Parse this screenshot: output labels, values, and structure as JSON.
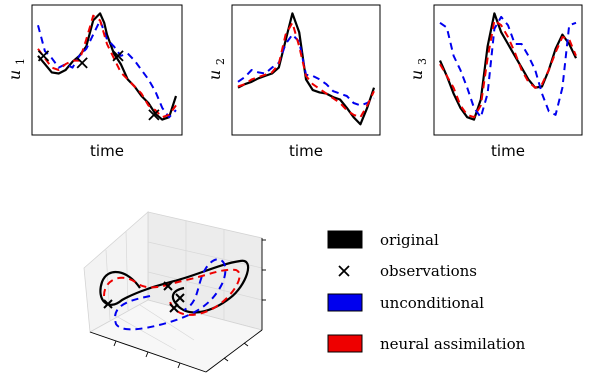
{
  "chart_data": [
    {
      "type": "line",
      "panel": "u1",
      "ylabel": "u",
      "ylabel_sub": "1",
      "xlabel": "time",
      "xlim": [
        0,
        1
      ],
      "ylim": [
        0,
        1
      ],
      "grid": false,
      "series": [
        {
          "name": "original",
          "color": "#000000",
          "dash": "solid",
          "x": [
            0.0,
            0.05,
            0.1,
            0.15,
            0.2,
            0.25,
            0.3,
            0.35,
            0.4,
            0.45,
            0.48,
            0.5,
            0.55,
            0.6,
            0.65,
            0.7,
            0.75,
            0.8,
            0.85,
            0.9,
            0.95,
            1.0
          ],
          "y": [
            0.62,
            0.55,
            0.48,
            0.47,
            0.5,
            0.57,
            0.62,
            0.7,
            0.92,
            0.98,
            0.9,
            0.8,
            0.64,
            0.55,
            0.42,
            0.36,
            0.28,
            0.22,
            0.13,
            0.08,
            0.1,
            0.28
          ]
        },
        {
          "name": "unconditional",
          "color": "#0000ee",
          "dash": "dashed",
          "x": [
            0.0,
            0.05,
            0.1,
            0.15,
            0.2,
            0.25,
            0.3,
            0.35,
            0.4,
            0.45,
            0.5,
            0.55,
            0.6,
            0.65,
            0.7,
            0.75,
            0.8,
            0.85,
            0.9,
            0.95,
            1.0
          ],
          "y": [
            0.88,
            0.66,
            0.6,
            0.52,
            0.55,
            0.52,
            0.62,
            0.68,
            0.8,
            0.92,
            0.76,
            0.7,
            0.62,
            0.64,
            0.58,
            0.5,
            0.42,
            0.32,
            0.18,
            0.1,
            0.16
          ]
        },
        {
          "name": "neural assimilation",
          "color": "#ee0000",
          "dash": "dashed",
          "x": [
            0.0,
            0.05,
            0.1,
            0.15,
            0.2,
            0.25,
            0.3,
            0.35,
            0.4,
            0.45,
            0.5,
            0.55,
            0.6,
            0.65,
            0.7,
            0.75,
            0.8,
            0.85,
            0.9,
            0.95,
            1.0
          ],
          "y": [
            0.68,
            0.6,
            0.52,
            0.5,
            0.55,
            0.58,
            0.58,
            0.76,
            0.96,
            0.92,
            0.72,
            0.6,
            0.48,
            0.42,
            0.36,
            0.3,
            0.2,
            0.16,
            0.1,
            0.12,
            0.2
          ]
        }
      ],
      "observations": {
        "x": [
          0.04,
          0.32,
          0.58,
          0.84
        ],
        "y": [
          0.62,
          0.56,
          0.62,
          0.12
        ]
      }
    },
    {
      "type": "line",
      "panel": "u2",
      "ylabel": "u",
      "ylabel_sub": "2",
      "xlabel": "time",
      "xlim": [
        0,
        1
      ],
      "ylim": [
        0,
        1
      ],
      "grid": false,
      "series": [
        {
          "name": "original",
          "color": "#000000",
          "dash": "solid",
          "x": [
            0.0,
            0.05,
            0.1,
            0.15,
            0.2,
            0.25,
            0.3,
            0.35,
            0.4,
            0.45,
            0.5,
            0.55,
            0.6,
            0.65,
            0.7,
            0.75,
            0.8,
            0.85,
            0.9,
            0.95,
            1.0
          ],
          "y": [
            0.35,
            0.38,
            0.4,
            0.43,
            0.45,
            0.47,
            0.52,
            0.75,
            0.98,
            0.82,
            0.42,
            0.33,
            0.31,
            0.3,
            0.27,
            0.25,
            0.18,
            0.1,
            0.04,
            0.18,
            0.35
          ]
        },
        {
          "name": "unconditional",
          "color": "#0000ee",
          "dash": "dashed",
          "x": [
            0.0,
            0.05,
            0.1,
            0.15,
            0.2,
            0.25,
            0.3,
            0.35,
            0.4,
            0.45,
            0.5,
            0.55,
            0.6,
            0.65,
            0.7,
            0.75,
            0.8,
            0.85,
            0.9,
            0.95,
            1.0
          ],
          "y": [
            0.4,
            0.44,
            0.5,
            0.48,
            0.47,
            0.52,
            0.56,
            0.72,
            0.8,
            0.74,
            0.46,
            0.45,
            0.42,
            0.38,
            0.32,
            0.3,
            0.28,
            0.22,
            0.2,
            0.22,
            0.26
          ]
        },
        {
          "name": "neural assimilation",
          "color": "#ee0000",
          "dash": "dashed",
          "x": [
            0.0,
            0.05,
            0.1,
            0.15,
            0.2,
            0.25,
            0.3,
            0.35,
            0.4,
            0.45,
            0.5,
            0.55,
            0.6,
            0.65,
            0.7,
            0.75,
            0.8,
            0.85,
            0.9,
            0.95,
            1.0
          ],
          "y": [
            0.36,
            0.38,
            0.42,
            0.44,
            0.46,
            0.48,
            0.55,
            0.8,
            0.9,
            0.7,
            0.45,
            0.38,
            0.34,
            0.3,
            0.26,
            0.22,
            0.16,
            0.12,
            0.1,
            0.2,
            0.32
          ]
        }
      ]
    },
    {
      "type": "line",
      "panel": "u3",
      "ylabel": "u",
      "ylabel_sub": "3",
      "xlabel": "time",
      "xlim": [
        0,
        1
      ],
      "ylim": [
        0,
        1
      ],
      "grid": false,
      "series": [
        {
          "name": "original",
          "color": "#000000",
          "dash": "solid",
          "x": [
            0.0,
            0.05,
            0.1,
            0.15,
            0.2,
            0.25,
            0.3,
            0.35,
            0.4,
            0.45,
            0.5,
            0.55,
            0.6,
            0.65,
            0.7,
            0.75,
            0.8,
            0.85,
            0.9,
            0.95,
            1.0
          ],
          "y": [
            0.58,
            0.45,
            0.3,
            0.18,
            0.1,
            0.08,
            0.25,
            0.7,
            0.98,
            0.82,
            0.72,
            0.62,
            0.52,
            0.42,
            0.35,
            0.36,
            0.5,
            0.68,
            0.8,
            0.72,
            0.6
          ]
        },
        {
          "name": "unconditional",
          "color": "#0000ee",
          "dash": "dashed",
          "x": [
            0.0,
            0.05,
            0.1,
            0.15,
            0.2,
            0.25,
            0.3,
            0.35,
            0.4,
            0.45,
            0.5,
            0.55,
            0.6,
            0.65,
            0.7,
            0.75,
            0.8,
            0.85,
            0.9,
            0.95,
            1.0
          ],
          "y": [
            0.9,
            0.86,
            0.62,
            0.5,
            0.35,
            0.18,
            0.1,
            0.3,
            0.85,
            0.95,
            0.88,
            0.72,
            0.72,
            0.62,
            0.5,
            0.3,
            0.15,
            0.12,
            0.35,
            0.88,
            0.9
          ]
        },
        {
          "name": "neural assimilation",
          "color": "#ee0000",
          "dash": "dashed",
          "x": [
            0.0,
            0.05,
            0.1,
            0.15,
            0.2,
            0.25,
            0.3,
            0.35,
            0.4,
            0.45,
            0.5,
            0.55,
            0.6,
            0.65,
            0.7,
            0.75,
            0.8,
            0.85,
            0.9,
            0.95,
            1.0
          ],
          "y": [
            0.55,
            0.45,
            0.35,
            0.2,
            0.12,
            0.1,
            0.2,
            0.6,
            0.92,
            0.88,
            0.78,
            0.65,
            0.5,
            0.4,
            0.35,
            0.38,
            0.5,
            0.65,
            0.78,
            0.76,
            0.62
          ]
        }
      ]
    }
  ],
  "legend": {
    "placement": "right",
    "entries": [
      {
        "label": "original",
        "color": "#000000",
        "marker": "patch"
      },
      {
        "label": "observations",
        "color": "#000000",
        "marker": "x"
      },
      {
        "label": "unconditional",
        "color": "#0000ee",
        "marker": "patch"
      },
      {
        "label": "neural assimilation",
        "color": "#ee0000",
        "marker": "patch"
      }
    ]
  }
}
